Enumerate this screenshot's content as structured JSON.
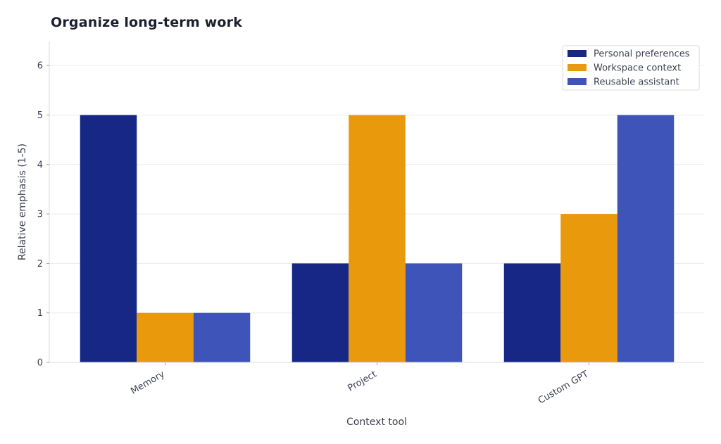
{
  "chart_data": {
    "type": "bar",
    "title": "Organize long-term work",
    "xlabel": "Context tool",
    "ylabel": "Relative emphasis (1-5)",
    "categories": [
      "Memory",
      "Project",
      "Custom GPT"
    ],
    "series": [
      {
        "name": "Personal preferences",
        "values": [
          5,
          2,
          2
        ],
        "color": "#172785"
      },
      {
        "name": "Workspace context",
        "values": [
          1,
          5,
          3
        ],
        "color": "#E99A0C"
      },
      {
        "name": "Reusable assistant",
        "values": [
          1,
          2,
          5
        ],
        "color": "#3F54B8"
      }
    ],
    "ylim": [
      0,
      6.5
    ],
    "yticks": [
      0,
      1,
      2,
      3,
      4,
      5,
      6
    ],
    "grid": true,
    "legend_position": "top-right"
  }
}
